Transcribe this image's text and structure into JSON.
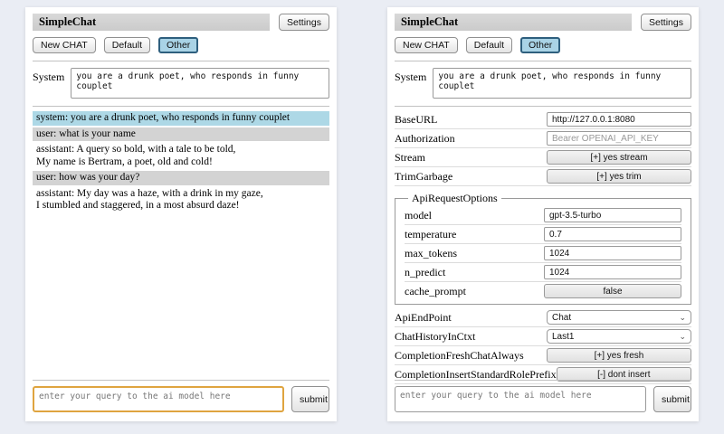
{
  "colors": {
    "page_bg": "#eaedf4",
    "title_bar_bg": "#d3d3d3",
    "active_session_bg": "#a9d3e6",
    "active_session_border": "#2e5f7e",
    "system_message_bg": "#add8e6",
    "user_message_bg": "#d3d3d3",
    "query_focus_border": "#dfa43f"
  },
  "header": {
    "title": "SimpleChat",
    "settings_button": "Settings",
    "new_chat_button": "New CHAT",
    "session_default": "Default",
    "session_other": "Other",
    "active_session": "Other"
  },
  "system_prompt": {
    "label": "System",
    "value": "you are a drunk poet, who responds in funny couplet"
  },
  "chat": {
    "messages": [
      {
        "role": "system",
        "text": "system: you are a drunk poet, who responds in funny couplet"
      },
      {
        "role": "user",
        "text": "user: what is your name"
      },
      {
        "role": "assistant",
        "text": "assistant: A query so bold, with a tale to be told,\nMy name is Bertram, a poet, old and cold!"
      },
      {
        "role": "user",
        "text": "user: how was your day?"
      },
      {
        "role": "assistant",
        "text": "assistant: My day was a haze, with a drink in my gaze,\nI stumbled and staggered, in a most absurd daze!"
      }
    ]
  },
  "query": {
    "placeholder": "enter your query to the ai model here",
    "submit_label": "submit"
  },
  "right": {
    "settings_top": [
      {
        "label": "BaseURL",
        "value": "http://127.0.0.1:8080"
      },
      {
        "label": "Authorization",
        "placeholder": "Bearer OPENAI_API_KEY"
      },
      {
        "label": "Stream",
        "button": "[+] yes stream"
      },
      {
        "label": "TrimGarbage",
        "button": "[+] yes trim"
      }
    ],
    "api_request_options": {
      "legend": "ApiRequestOptions",
      "rows": [
        {
          "label": "model",
          "value": "gpt-3.5-turbo"
        },
        {
          "label": "temperature",
          "value": "0.7"
        },
        {
          "label": "max_tokens",
          "value": "1024"
        },
        {
          "label": "n_predict",
          "value": "1024"
        },
        {
          "label": "cache_prompt",
          "button": "false"
        }
      ]
    },
    "settings_bottom": [
      {
        "label": "ApiEndPoint",
        "select": "Chat"
      },
      {
        "label": "ChatHistoryInCtxt",
        "select": "Last1"
      },
      {
        "label": "CompletionFreshChatAlways",
        "button": "[+] yes fresh"
      },
      {
        "label": "CompletionInsertStandardRolePrefix",
        "button": "[-] dont insert"
      }
    ]
  }
}
